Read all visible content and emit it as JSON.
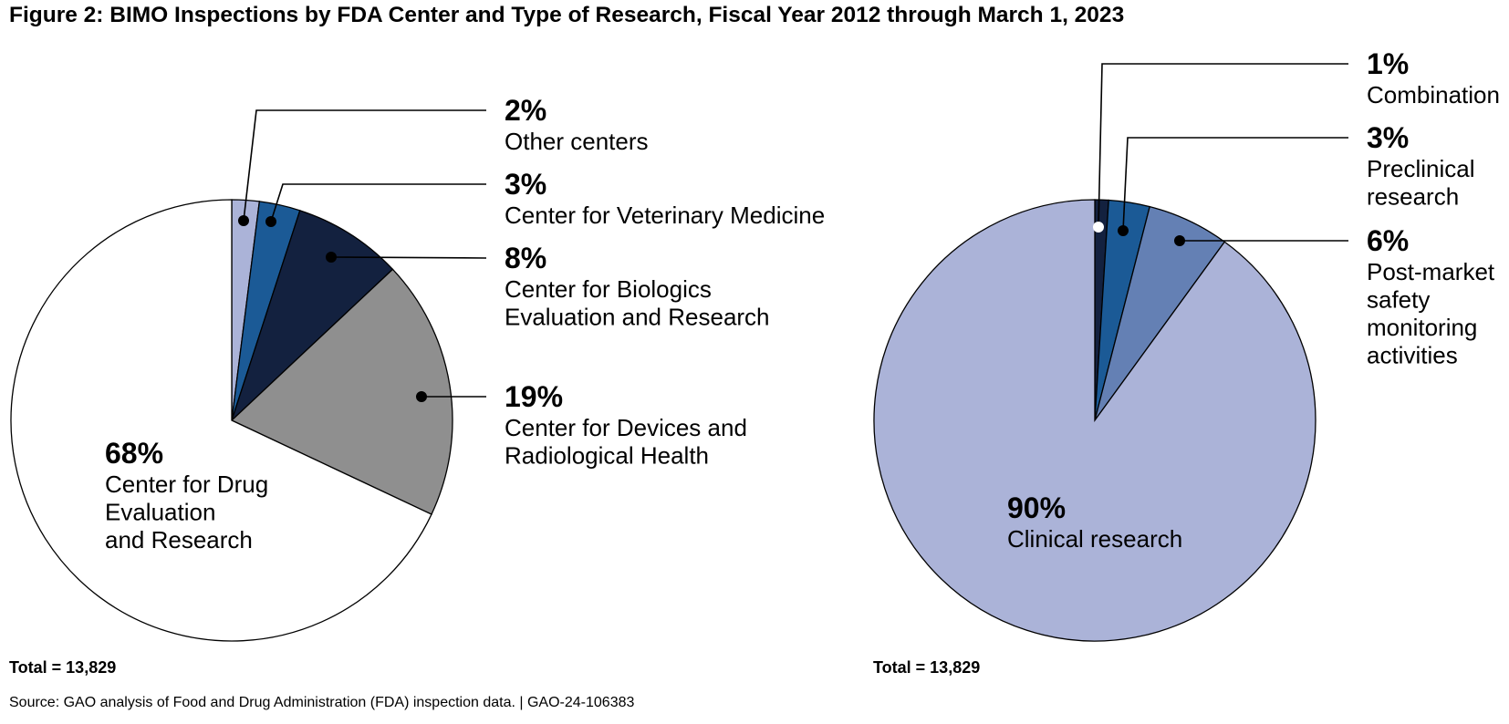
{
  "title": "Figure 2: BIMO Inspections by FDA Center and Type of Research, Fiscal Year 2012 through March 1, 2023",
  "source": "Source: GAO analysis of Food and Drug Administration (FDA) inspection data.  |  GAO-24-106383",
  "chart_data": [
    {
      "type": "pie",
      "title": "",
      "total_label": "Total = 13,829",
      "start": "12 o'clock",
      "direction": "clockwise",
      "slices": [
        {
          "pct_label": "2%",
          "value": 2,
          "label_lines": [
            "Other centers"
          ],
          "color": "#abb3d8"
        },
        {
          "pct_label": "3%",
          "value": 3,
          "label_lines": [
            "Center for Veterinary Medicine"
          ],
          "color": "#1b5a96"
        },
        {
          "pct_label": "8%",
          "value": 8,
          "label_lines": [
            "Center for Biologics",
            "Evaluation and Research"
          ],
          "color": "#13213f"
        },
        {
          "pct_label": "19%",
          "value": 19,
          "label_lines": [
            "Center for Devices and",
            "Radiological Health"
          ],
          "color": "#8f8f8f"
        },
        {
          "pct_label": "68%",
          "value": 68,
          "label_lines": [
            "Center for Drug",
            "Evaluation",
            "and Research"
          ],
          "color": "#ffffff"
        }
      ]
    },
    {
      "type": "pie",
      "title": "",
      "total_label": "Total = 13,829",
      "start": "12 o'clock",
      "direction": "clockwise",
      "slices": [
        {
          "pct_label": "1%",
          "value": 1,
          "label_lines": [
            "Combination"
          ],
          "color": "#13213f"
        },
        {
          "pct_label": "3%",
          "value": 3,
          "label_lines": [
            "Preclinical",
            "research"
          ],
          "color": "#1b5a96"
        },
        {
          "pct_label": "6%",
          "value": 6,
          "label_lines": [
            "Post-market",
            "safety",
            "monitoring",
            "activities"
          ],
          "color": "#6480b4"
        },
        {
          "pct_label": "90%",
          "value": 90,
          "label_lines": [
            "Clinical research"
          ],
          "color": "#abb3d8"
        }
      ]
    }
  ]
}
